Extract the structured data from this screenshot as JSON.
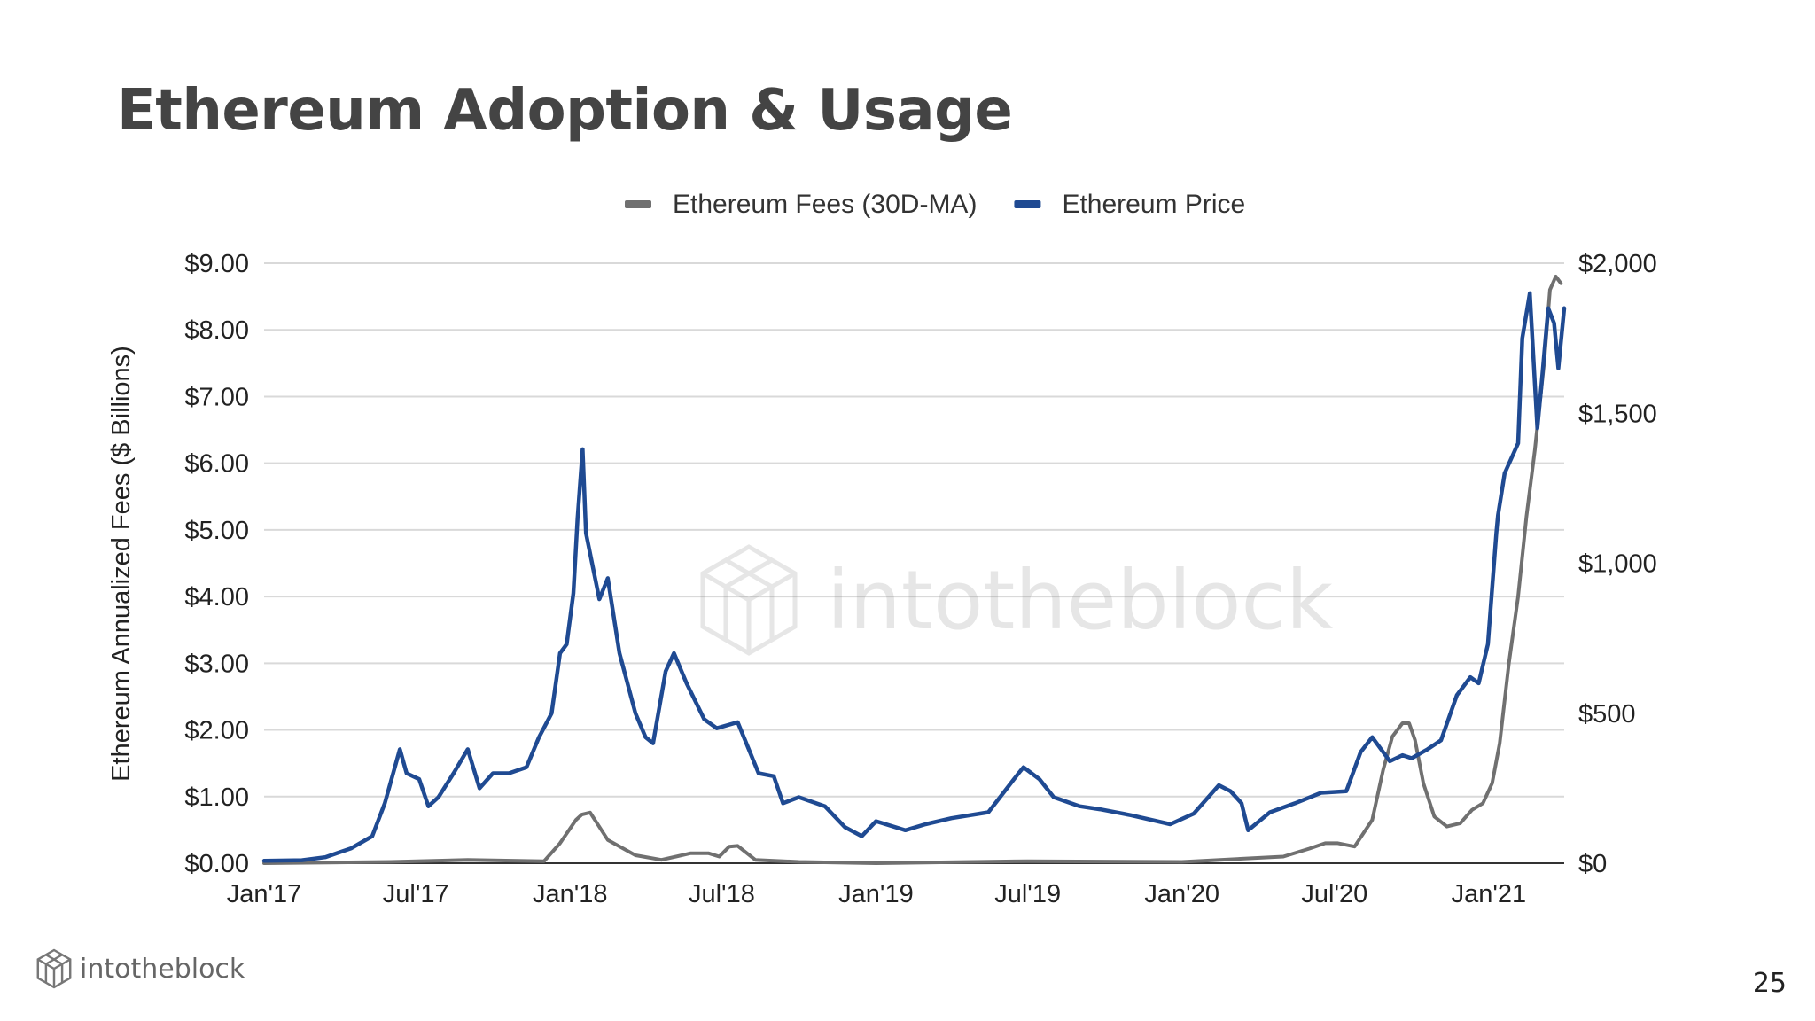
{
  "page": {
    "title": "Ethereum Adoption & Usage",
    "page_number": "25"
  },
  "brand": {
    "name": "intotheblock",
    "logo_icon": "cube-logo-icon"
  },
  "watermark": {
    "text": "intotheblock"
  },
  "colors": {
    "fees": "#707070",
    "price": "#1f4a92",
    "grid": "#d9d9d9",
    "axis": "#333333"
  },
  "chart_data": {
    "type": "line",
    "title": "",
    "legend_position": "top",
    "grid": true,
    "ylabel_left": "Ethereum Annualized Fees ($ Billions)",
    "ylabel_right": "",
    "ylim_left": [
      0,
      9
    ],
    "ylim_right": [
      0,
      2000
    ],
    "yticks_left": [
      "$0.00",
      "$1.00",
      "$2.00",
      "$3.00",
      "$4.00",
      "$5.00",
      "$6.00",
      "$7.00",
      "$8.00",
      "$9.00"
    ],
    "yticks_right": [
      "$0",
      "$500",
      "$1,000",
      "$1,500",
      "$2,000"
    ],
    "xlim": [
      "2017-01-01",
      "2021-04-01"
    ],
    "xticks": [
      {
        "date": "2017-01-01",
        "label": "Jan'17"
      },
      {
        "date": "2017-07-01",
        "label": "Jul'17"
      },
      {
        "date": "2018-01-01",
        "label": "Jan'18"
      },
      {
        "date": "2018-07-01",
        "label": "Jul'18"
      },
      {
        "date": "2019-01-01",
        "label": "Jan'19"
      },
      {
        "date": "2019-07-01",
        "label": "Jul'19"
      },
      {
        "date": "2020-01-01",
        "label": "Jan'20"
      },
      {
        "date": "2020-07-01",
        "label": "Jul'20"
      },
      {
        "date": "2021-01-01",
        "label": "Jan'21"
      }
    ],
    "series": [
      {
        "name": "Ethereum Fees (30D-MA)",
        "axis": "left",
        "x": [
          "2017-01-01",
          "2017-06-01",
          "2017-09-01",
          "2017-12-01",
          "2017-12-20",
          "2018-01-08",
          "2018-01-15",
          "2018-01-25",
          "2018-02-15",
          "2018-03-20",
          "2018-04-20",
          "2018-05-25",
          "2018-06-15",
          "2018-06-28",
          "2018-07-10",
          "2018-07-20",
          "2018-08-10",
          "2018-10-01",
          "2019-01-01",
          "2019-07-01",
          "2020-01-01",
          "2020-05-01",
          "2020-06-01",
          "2020-06-20",
          "2020-07-05",
          "2020-07-25",
          "2020-08-15",
          "2020-08-28",
          "2020-09-08",
          "2020-09-20",
          "2020-09-28",
          "2020-10-05",
          "2020-10-15",
          "2020-10-28",
          "2020-11-12",
          "2020-11-28",
          "2020-12-12",
          "2020-12-25",
          "2021-01-05",
          "2021-01-14",
          "2021-01-25",
          "2021-02-05",
          "2021-02-15",
          "2021-02-25",
          "2021-03-08",
          "2021-03-15",
          "2021-03-22",
          "2021-03-28"
        ],
        "y": [
          0.0,
          0.02,
          0.05,
          0.03,
          0.3,
          0.65,
          0.73,
          0.76,
          0.35,
          0.12,
          0.05,
          0.15,
          0.15,
          0.1,
          0.25,
          0.26,
          0.05,
          0.02,
          0.0,
          0.03,
          0.02,
          0.1,
          0.22,
          0.3,
          0.3,
          0.25,
          0.65,
          1.4,
          1.9,
          2.1,
          2.1,
          1.85,
          1.2,
          0.7,
          0.55,
          0.6,
          0.8,
          0.9,
          1.2,
          1.8,
          3.0,
          4.0,
          5.2,
          6.2,
          7.5,
          8.6,
          8.8,
          8.7
        ]
      },
      {
        "name": "Ethereum Price",
        "axis": "right",
        "x": [
          "2017-01-01",
          "2017-02-15",
          "2017-03-15",
          "2017-04-15",
          "2017-05-10",
          "2017-05-25",
          "2017-06-12",
          "2017-06-20",
          "2017-07-05",
          "2017-07-16",
          "2017-07-28",
          "2017-08-15",
          "2017-09-01",
          "2017-09-15",
          "2017-10-01",
          "2017-10-20",
          "2017-11-10",
          "2017-11-25",
          "2017-12-10",
          "2017-12-20",
          "2017-12-28",
          "2018-01-05",
          "2018-01-10",
          "2018-01-16",
          "2018-01-20",
          "2018-02-05",
          "2018-02-15",
          "2018-03-01",
          "2018-03-20",
          "2018-04-01",
          "2018-04-10",
          "2018-04-25",
          "2018-05-05",
          "2018-05-20",
          "2018-06-10",
          "2018-06-25",
          "2018-07-20",
          "2018-08-14",
          "2018-09-01",
          "2018-09-12",
          "2018-10-01",
          "2018-11-01",
          "2018-11-25",
          "2018-12-15",
          "2019-01-01",
          "2019-02-05",
          "2019-03-01",
          "2019-04-01",
          "2019-05-15",
          "2019-06-20",
          "2019-06-26",
          "2019-07-15",
          "2019-08-01",
          "2019-09-01",
          "2019-09-25",
          "2019-11-01",
          "2019-12-18",
          "2020-01-15",
          "2020-02-14",
          "2020-02-28",
          "2020-03-12",
          "2020-03-20",
          "2020-04-15",
          "2020-05-15",
          "2020-06-15",
          "2020-07-15",
          "2020-08-01",
          "2020-08-15",
          "2020-09-05",
          "2020-09-20",
          "2020-10-01",
          "2020-10-20",
          "2020-11-05",
          "2020-11-24",
          "2020-12-10",
          "2020-12-20",
          "2020-12-31",
          "2021-01-10",
          "2021-01-12",
          "2021-01-20",
          "2021-02-05",
          "2021-02-10",
          "2021-02-19",
          "2021-02-28",
          "2021-03-05",
          "2021-03-13",
          "2021-03-20",
          "2021-03-25",
          "2021-04-01"
        ],
        "y": [
          8,
          10,
          20,
          50,
          90,
          200,
          380,
          300,
          280,
          190,
          220,
          300,
          380,
          250,
          300,
          300,
          320,
          420,
          500,
          700,
          730,
          900,
          1150,
          1380,
          1100,
          880,
          950,
          700,
          500,
          420,
          400,
          640,
          700,
          600,
          480,
          450,
          470,
          300,
          290,
          200,
          220,
          190,
          120,
          90,
          140,
          110,
          130,
          150,
          170,
          300,
          320,
          280,
          220,
          190,
          180,
          160,
          130,
          165,
          260,
          240,
          200,
          110,
          170,
          200,
          235,
          240,
          370,
          420,
          340,
          360,
          350,
          380,
          410,
          560,
          620,
          600,
          730,
          1100,
          1160,
          1300,
          1400,
          1750,
          1900,
          1450,
          1600,
          1850,
          1800,
          1650,
          1850
        ]
      }
    ]
  }
}
